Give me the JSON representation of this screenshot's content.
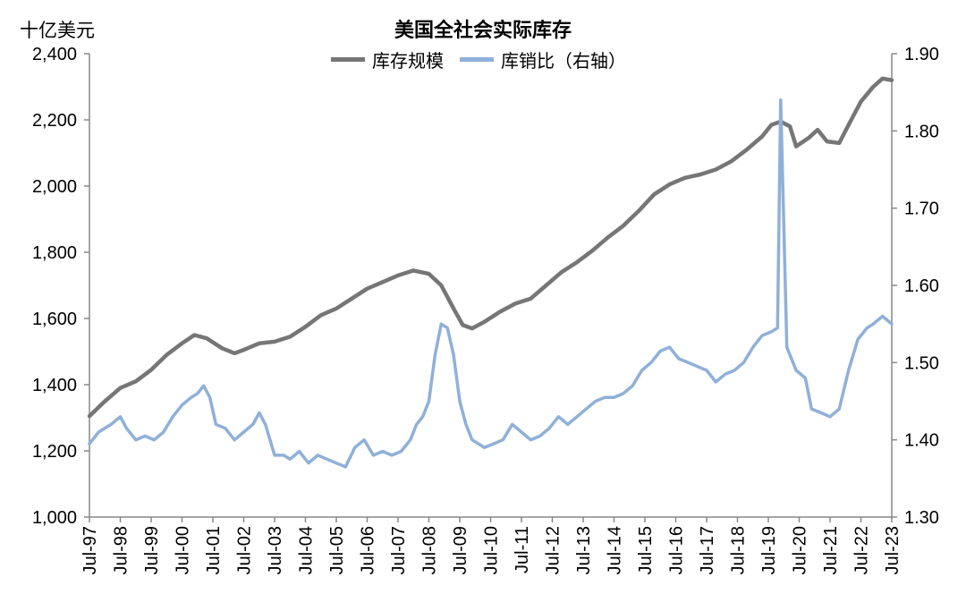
{
  "chart_data": {
    "type": "line",
    "title": "美国全社会实际库存",
    "ylabel": "十亿美元",
    "ylim": [
      1000,
      2400
    ],
    "y2lim": [
      1.3,
      1.9
    ],
    "yticks": [
      "1,000",
      "1,200",
      "1,400",
      "1,600",
      "1,800",
      "2,000",
      "2,200",
      "2,400"
    ],
    "y2ticks": [
      "1.30",
      "1.40",
      "1.50",
      "1.60",
      "1.70",
      "1.80",
      "1.90"
    ],
    "xticks": [
      "Jul-97",
      "Jul-98",
      "Jul-99",
      "Jul-00",
      "Jul-01",
      "Jul-02",
      "Jul-03",
      "Jul-04",
      "Jul-05",
      "Jul-06",
      "Jul-07",
      "Jul-08",
      "Jul-09",
      "Jul-10",
      "Jul-11",
      "Jul-12",
      "Jul-13",
      "Jul-14",
      "Jul-15",
      "Jul-16",
      "Jul-17",
      "Jul-18",
      "Jul-19",
      "Jul-20",
      "Jul-21",
      "Jul-22",
      "Jul-23"
    ],
    "x_start": 1997.5,
    "x_end": 2023.5,
    "grid": false,
    "legend_position": "top-center",
    "series": [
      {
        "name": "库存规模",
        "axis": "left",
        "color": "#767676",
        "points": [
          [
            1997.5,
            1305
          ],
          [
            1998.0,
            1350
          ],
          [
            1998.5,
            1390
          ],
          [
            1999.0,
            1410
          ],
          [
            1999.5,
            1445
          ],
          [
            2000.0,
            1490
          ],
          [
            2000.5,
            1525
          ],
          [
            2000.9,
            1550
          ],
          [
            2001.3,
            1540
          ],
          [
            2001.8,
            1510
          ],
          [
            2002.2,
            1495
          ],
          [
            2002.5,
            1505
          ],
          [
            2003.0,
            1525
          ],
          [
            2003.5,
            1530
          ],
          [
            2004.0,
            1545
          ],
          [
            2004.5,
            1575
          ],
          [
            2005.0,
            1610
          ],
          [
            2005.5,
            1630
          ],
          [
            2006.0,
            1660
          ],
          [
            2006.5,
            1690
          ],
          [
            2007.0,
            1710
          ],
          [
            2007.5,
            1730
          ],
          [
            2008.0,
            1745
          ],
          [
            2008.5,
            1735
          ],
          [
            2008.9,
            1700
          ],
          [
            2009.3,
            1630
          ],
          [
            2009.6,
            1580
          ],
          [
            2009.9,
            1570
          ],
          [
            2010.3,
            1590
          ],
          [
            2010.8,
            1620
          ],
          [
            2011.3,
            1645
          ],
          [
            2011.8,
            1660
          ],
          [
            2012.3,
            1700
          ],
          [
            2012.8,
            1740
          ],
          [
            2013.3,
            1770
          ],
          [
            2013.8,
            1805
          ],
          [
            2014.3,
            1845
          ],
          [
            2014.8,
            1880
          ],
          [
            2015.3,
            1925
          ],
          [
            2015.8,
            1975
          ],
          [
            2016.3,
            2005
          ],
          [
            2016.8,
            2025
          ],
          [
            2017.3,
            2035
          ],
          [
            2017.8,
            2050
          ],
          [
            2018.3,
            2075
          ],
          [
            2018.8,
            2110
          ],
          [
            2019.3,
            2150
          ],
          [
            2019.6,
            2185
          ],
          [
            2019.9,
            2195
          ],
          [
            2020.2,
            2180
          ],
          [
            2020.4,
            2120
          ],
          [
            2020.8,
            2145
          ],
          [
            2021.1,
            2170
          ],
          [
            2021.4,
            2135
          ],
          [
            2021.8,
            2130
          ],
          [
            2022.1,
            2185
          ],
          [
            2022.5,
            2255
          ],
          [
            2022.9,
            2300
          ],
          [
            2023.2,
            2325
          ],
          [
            2023.5,
            2320
          ]
        ]
      },
      {
        "name": "库销比（右轴）",
        "axis": "right",
        "color": "#8fb0d8",
        "points": [
          [
            1997.5,
            1.395
          ],
          [
            1997.8,
            1.41
          ],
          [
            1998.2,
            1.42
          ],
          [
            1998.5,
            1.43
          ],
          [
            1998.7,
            1.415
          ],
          [
            1999.0,
            1.4
          ],
          [
            1999.3,
            1.405
          ],
          [
            1999.6,
            1.4
          ],
          [
            1999.9,
            1.41
          ],
          [
            2000.2,
            1.43
          ],
          [
            2000.5,
            1.445
          ],
          [
            2000.8,
            1.455
          ],
          [
            2001.0,
            1.46
          ],
          [
            2001.2,
            1.47
          ],
          [
            2001.4,
            1.455
          ],
          [
            2001.6,
            1.42
          ],
          [
            2001.9,
            1.415
          ],
          [
            2002.2,
            1.4
          ],
          [
            2002.5,
            1.41
          ],
          [
            2002.8,
            1.42
          ],
          [
            2003.0,
            1.435
          ],
          [
            2003.2,
            1.42
          ],
          [
            2003.5,
            1.38
          ],
          [
            2003.8,
            1.38
          ],
          [
            2004.0,
            1.375
          ],
          [
            2004.3,
            1.385
          ],
          [
            2004.6,
            1.37
          ],
          [
            2004.9,
            1.38
          ],
          [
            2005.2,
            1.375
          ],
          [
            2005.5,
            1.37
          ],
          [
            2005.8,
            1.365
          ],
          [
            2006.1,
            1.39
          ],
          [
            2006.4,
            1.4
          ],
          [
            2006.7,
            1.38
          ],
          [
            2007.0,
            1.385
          ],
          [
            2007.3,
            1.38
          ],
          [
            2007.6,
            1.385
          ],
          [
            2007.9,
            1.4
          ],
          [
            2008.1,
            1.42
          ],
          [
            2008.3,
            1.43
          ],
          [
            2008.5,
            1.45
          ],
          [
            2008.7,
            1.51
          ],
          [
            2008.9,
            1.55
          ],
          [
            2009.1,
            1.545
          ],
          [
            2009.3,
            1.51
          ],
          [
            2009.5,
            1.45
          ],
          [
            2009.7,
            1.42
          ],
          [
            2009.9,
            1.4
          ],
          [
            2010.1,
            1.395
          ],
          [
            2010.3,
            1.39
          ],
          [
            2010.6,
            1.395
          ],
          [
            2010.9,
            1.4
          ],
          [
            2011.2,
            1.42
          ],
          [
            2011.5,
            1.41
          ],
          [
            2011.8,
            1.4
          ],
          [
            2012.1,
            1.405
          ],
          [
            2012.4,
            1.415
          ],
          [
            2012.7,
            1.43
          ],
          [
            2013.0,
            1.42
          ],
          [
            2013.3,
            1.43
          ],
          [
            2013.6,
            1.44
          ],
          [
            2013.9,
            1.45
          ],
          [
            2014.2,
            1.455
          ],
          [
            2014.5,
            1.455
          ],
          [
            2014.8,
            1.46
          ],
          [
            2015.1,
            1.47
          ],
          [
            2015.4,
            1.49
          ],
          [
            2015.7,
            1.5
          ],
          [
            2016.0,
            1.515
          ],
          [
            2016.3,
            1.52
          ],
          [
            2016.6,
            1.505
          ],
          [
            2016.9,
            1.5
          ],
          [
            2017.2,
            1.495
          ],
          [
            2017.5,
            1.49
          ],
          [
            2017.8,
            1.475
          ],
          [
            2018.1,
            1.485
          ],
          [
            2018.4,
            1.49
          ],
          [
            2018.7,
            1.5
          ],
          [
            2019.0,
            1.52
          ],
          [
            2019.3,
            1.535
          ],
          [
            2019.6,
            1.54
          ],
          [
            2019.8,
            1.545
          ],
          [
            2019.9,
            1.84
          ],
          [
            2020.1,
            1.52
          ],
          [
            2020.4,
            1.49
          ],
          [
            2020.7,
            1.48
          ],
          [
            2020.9,
            1.44
          ],
          [
            2021.2,
            1.435
          ],
          [
            2021.5,
            1.43
          ],
          [
            2021.8,
            1.44
          ],
          [
            2022.1,
            1.49
          ],
          [
            2022.4,
            1.53
          ],
          [
            2022.7,
            1.545
          ],
          [
            2022.9,
            1.55
          ],
          [
            2023.2,
            1.56
          ],
          [
            2023.5,
            1.55
          ]
        ]
      }
    ]
  }
}
